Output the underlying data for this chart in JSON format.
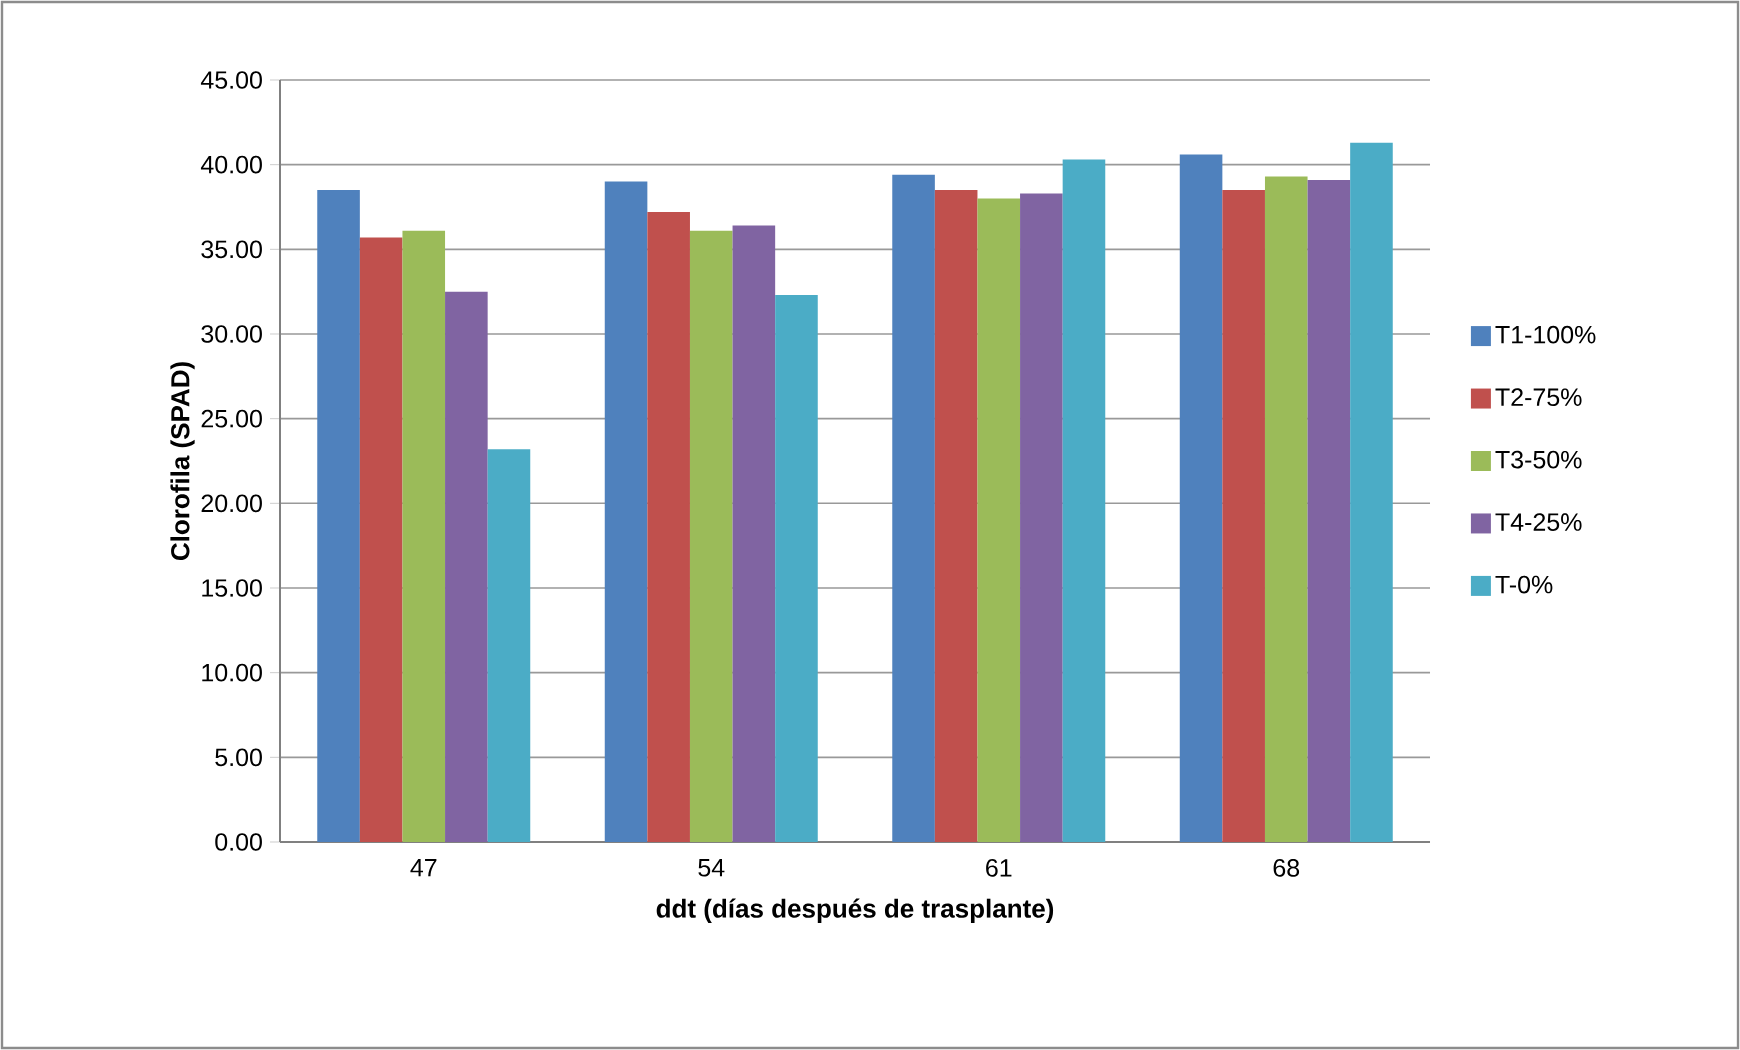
{
  "chart_data": {
    "type": "bar",
    "xlabel": "ddt (días después de trasplante)",
    "ylabel": "Clorofila (SPAD)",
    "categories": [
      "47",
      "54",
      "61",
      "68"
    ],
    "series": [
      {
        "name": "T1-100%",
        "color": "#4f81bd",
        "values": [
          38.5,
          39.0,
          39.4,
          40.6
        ]
      },
      {
        "name": "T2-75%",
        "color": "#c0504d",
        "values": [
          35.7,
          37.2,
          38.5,
          38.5
        ]
      },
      {
        "name": "T3-50%",
        "color": "#9bbb59",
        "values": [
          36.1,
          36.1,
          38.0,
          39.3
        ]
      },
      {
        "name": "T4-25%",
        "color": "#8064a2",
        "values": [
          32.5,
          36.4,
          38.3,
          39.1
        ]
      },
      {
        "name": "T-0%",
        "color": "#4bacc6",
        "values": [
          23.2,
          32.3,
          40.3,
          41.3
        ]
      }
    ],
    "ylim": [
      0,
      45
    ],
    "yticks": [
      {
        "value": 0,
        "label": "0.00"
      },
      {
        "value": 5,
        "label": "5.00"
      },
      {
        "value": 10,
        "label": "10.00"
      },
      {
        "value": 15,
        "label": "15.00"
      },
      {
        "value": 20,
        "label": "20.00"
      },
      {
        "value": 25,
        "label": "25.00"
      },
      {
        "value": 30,
        "label": "30.00"
      },
      {
        "value": 35,
        "label": "35.00"
      },
      {
        "value": 40,
        "label": "40.00"
      },
      {
        "value": 45,
        "label": "45.00"
      }
    ],
    "grid": "y",
    "legend": "right"
  }
}
